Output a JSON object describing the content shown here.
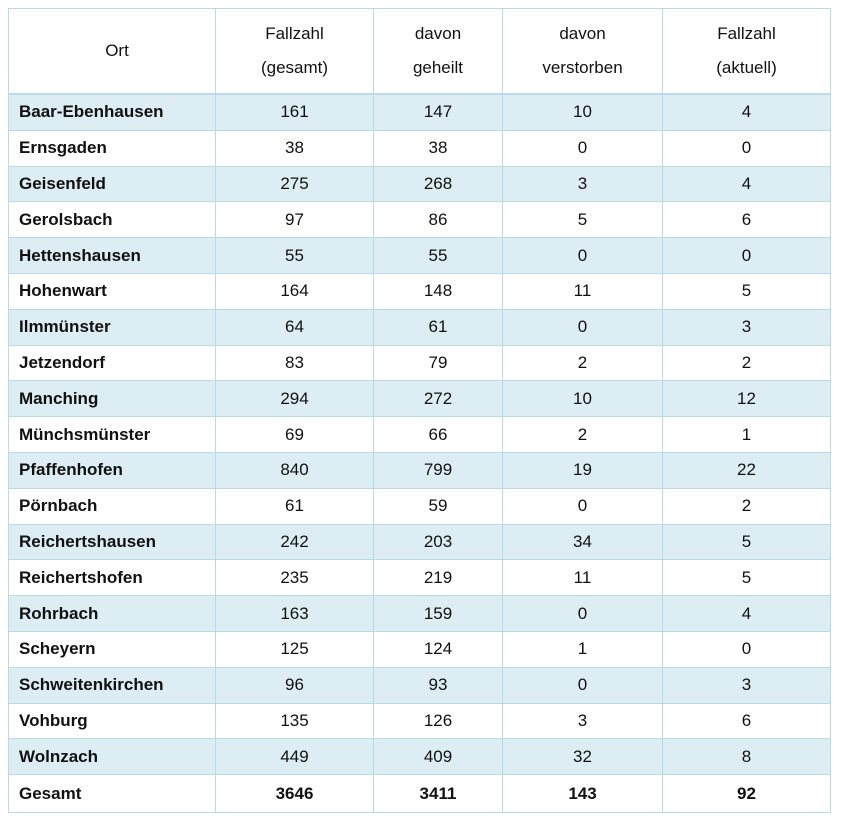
{
  "table": {
    "header": [
      [
        "Ort"
      ],
      [
        "Fallzahl",
        "(gesamt)"
      ],
      [
        "davon",
        "geheilt"
      ],
      [
        "davon",
        "verstorben"
      ],
      [
        "Fallzahl",
        "(aktuell)"
      ]
    ],
    "rows": [
      [
        "Baar-Ebenhausen",
        161,
        147,
        10,
        4
      ],
      [
        "Ernsgaden",
        38,
        38,
        0,
        0
      ],
      [
        "Geisenfeld",
        275,
        268,
        3,
        4
      ],
      [
        "Gerolsbach",
        97,
        86,
        5,
        6
      ],
      [
        "Hettenshausen",
        55,
        55,
        0,
        0
      ],
      [
        "Hohenwart",
        164,
        148,
        11,
        5
      ],
      [
        "Ilmmünster",
        64,
        61,
        0,
        3
      ],
      [
        "Jetzendorf",
        83,
        79,
        2,
        2
      ],
      [
        "Manching",
        294,
        272,
        10,
        12
      ],
      [
        "Münchsmünster",
        69,
        66,
        2,
        1
      ],
      [
        "Pfaffenhofen",
        840,
        799,
        19,
        22
      ],
      [
        "Pörnbach",
        61,
        59,
        0,
        2
      ],
      [
        "Reichertshausen",
        242,
        203,
        34,
        5
      ],
      [
        "Reichertshofen",
        235,
        219,
        11,
        5
      ],
      [
        "Rohrbach",
        163,
        159,
        0,
        4
      ],
      [
        "Scheyern",
        125,
        124,
        1,
        0
      ],
      [
        "Schweitenkirchen",
        96,
        93,
        0,
        3
      ],
      [
        "Vohburg",
        135,
        126,
        3,
        6
      ],
      [
        "Wolnzach",
        449,
        409,
        32,
        8
      ]
    ],
    "total": [
      "Gesamt",
      3646,
      3411,
      143,
      92
    ]
  }
}
